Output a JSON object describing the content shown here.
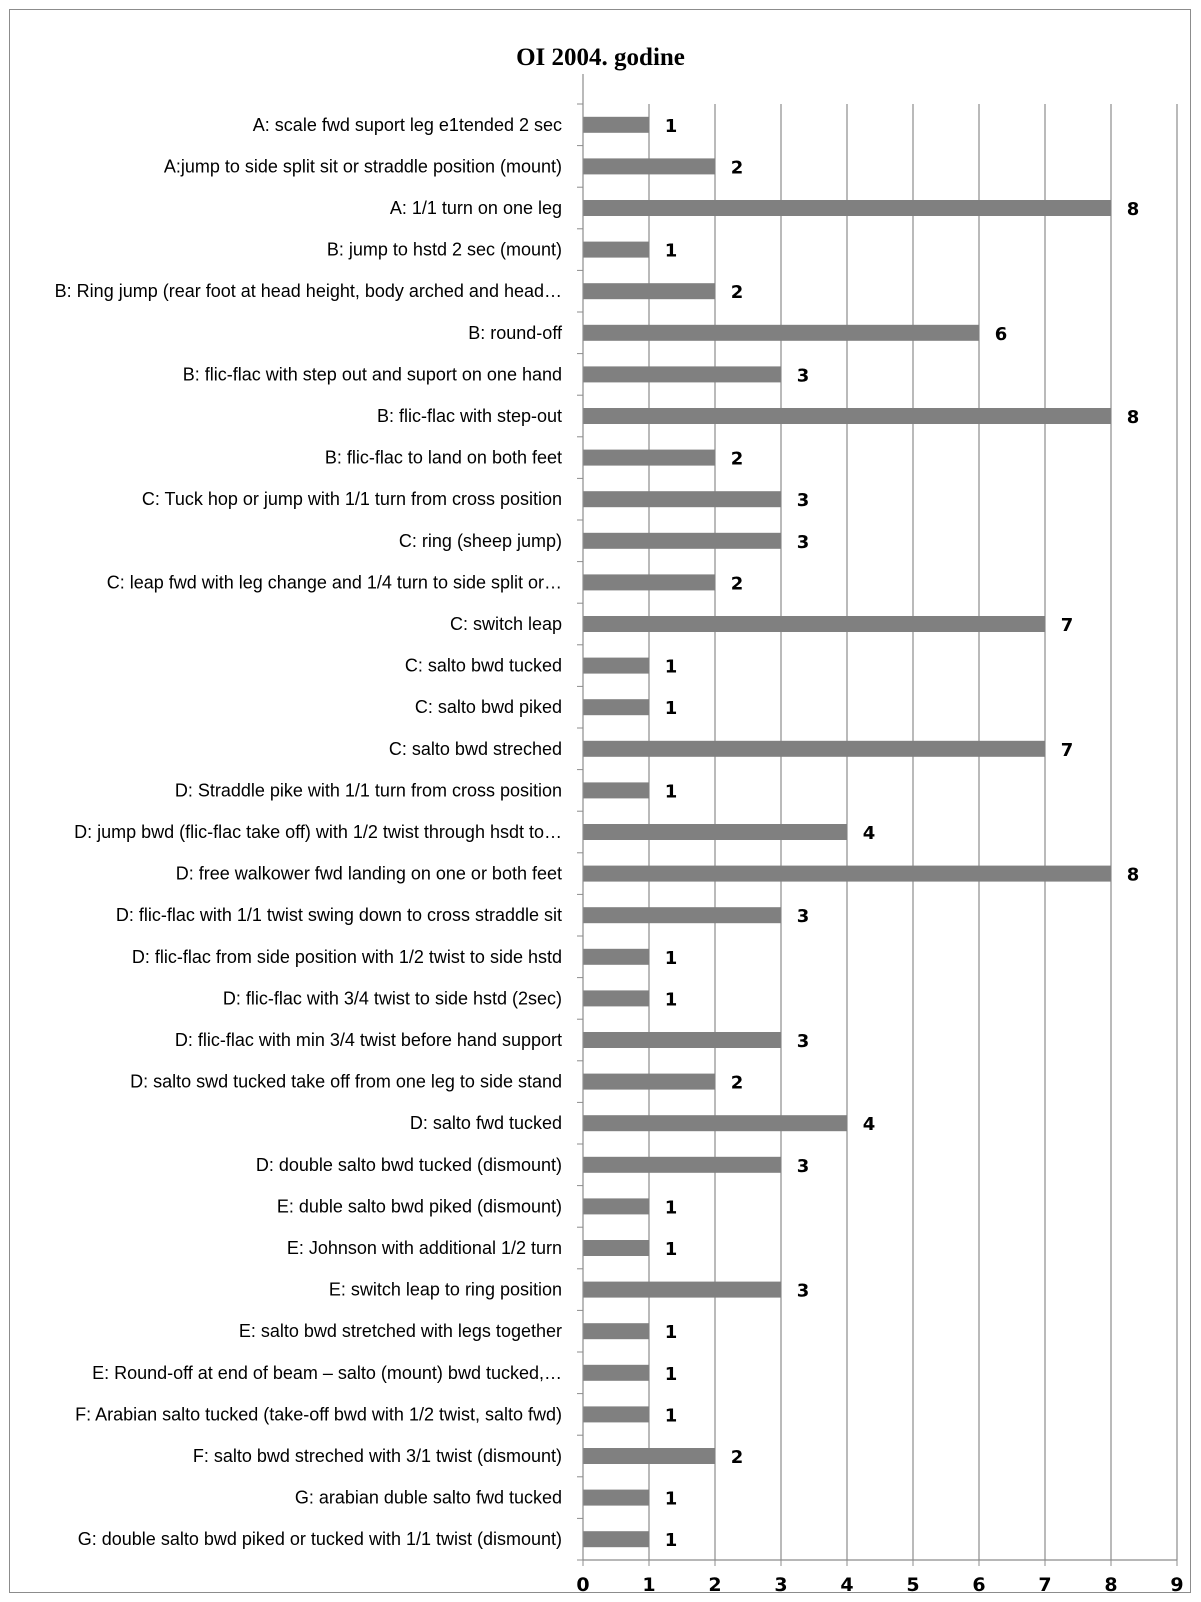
{
  "chart_data": {
    "type": "bar",
    "orientation": "horizontal",
    "title": "OI 2004. godine",
    "xlabel": "",
    "ylabel": "",
    "xlim": [
      0,
      9
    ],
    "x_ticks": [
      "0",
      "1",
      "2",
      "3",
      "4",
      "5",
      "6",
      "7",
      "8",
      "9"
    ],
    "grid": true,
    "legend": "none",
    "bar_color": "#808080",
    "categories": [
      "A: scale fwd suport leg e1tended 2 sec",
      "A:jump to side split sit or straddle position (mount)",
      "A: 1/1 turn on one leg",
      "B: jump to hstd 2 sec (mount)",
      "B: Ring jump (rear foot at head height, body arched and head…",
      "B: round-off",
      "B: flic-flac with step out and suport on one hand",
      "B: flic-flac with step-out",
      "B: flic-flac to land on both feet",
      "C: Tuck hop or jump with 1/1 turn from cross position",
      "C: ring (sheep jump)",
      "C: leap fwd with leg change and 1/4 turn to side split or…",
      "C: switch leap",
      "C: salto bwd tucked",
      "C: salto bwd piked",
      "C: salto bwd streched",
      "D: Straddle pike with 1/1 turn from cross position",
      "D: jump bwd (flic-flac take off) with 1/2 twist through hsdt to…",
      "D: free walkower fwd landing on one or both feet",
      "D: flic-flac with 1/1 twist swing down to cross straddle sit",
      "D: flic-flac from side position with 1/2 twist to side hstd",
      "D: flic-flac with 3/4 twist to side hstd (2sec)",
      "D: flic-flac with min 3/4 twist before hand support",
      "D: salto swd tucked take off from one leg to side stand",
      "D: salto fwd tucked",
      "D: double salto bwd tucked (dismount)",
      "E: duble salto bwd piked (dismount)",
      "E: Johnson with additional 1/2 turn",
      "E: switch leap to ring position",
      "E: salto bwd stretched with legs together",
      "E: Round-off at end of beam – salto (mount) bwd tucked,…",
      "F: Arabian salto tucked (take-off bwd with 1/2 twist, salto fwd)",
      "F: salto bwd streched with 3/1 twist (dismount)",
      "G: arabian duble salto fwd tucked",
      "G: double salto bwd piked or tucked with 1/1 twist (dismount)"
    ],
    "values": [
      1,
      2,
      8,
      1,
      2,
      6,
      3,
      8,
      2,
      3,
      3,
      2,
      7,
      1,
      1,
      7,
      1,
      4,
      8,
      3,
      1,
      1,
      3,
      2,
      4,
      3,
      1,
      1,
      3,
      1,
      1,
      1,
      2,
      1,
      1
    ]
  }
}
